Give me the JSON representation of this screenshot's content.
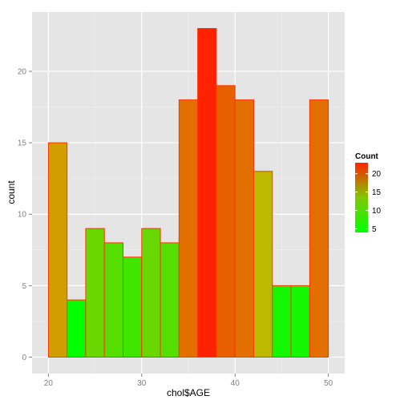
{
  "chart_data": {
    "type": "bar",
    "xlabel": "chol$AGE",
    "ylabel": "count",
    "bins": [
      {
        "start": 20,
        "end": 22,
        "count": 15
      },
      {
        "start": 22,
        "end": 24,
        "count": 4
      },
      {
        "start": 24,
        "end": 26,
        "count": 9
      },
      {
        "start": 26,
        "end": 28,
        "count": 8
      },
      {
        "start": 28,
        "end": 30,
        "count": 7
      },
      {
        "start": 30,
        "end": 32,
        "count": 9
      },
      {
        "start": 32,
        "end": 34,
        "count": 8
      },
      {
        "start": 34,
        "end": 36,
        "count": 18
      },
      {
        "start": 36,
        "end": 38,
        "count": 23
      },
      {
        "start": 38,
        "end": 40,
        "count": 19
      },
      {
        "start": 40,
        "end": 42,
        "count": 18
      },
      {
        "start": 42,
        "end": 44,
        "count": 13
      },
      {
        "start": 44,
        "end": 46,
        "count": 5
      },
      {
        "start": 46,
        "end": 48,
        "count": 5
      },
      {
        "start": 48,
        "end": 50,
        "count": 18
      }
    ],
    "xlim": [
      18.25,
      51.75
    ],
    "ylim": [
      -1.15,
      24.15
    ],
    "x_ticks": [
      20,
      30,
      40,
      50
    ],
    "y_ticks": [
      0,
      5,
      10,
      15,
      20
    ],
    "grid": true,
    "bar_outline_color": "#ff3300",
    "panel_color": "#e5e5e5",
    "grid_color": "#ffffff",
    "legend": {
      "title": "Count",
      "placement": "right",
      "breaks": [
        5,
        10,
        15,
        20
      ],
      "range": [
        4,
        23
      ],
      "low_color": "#00ff00",
      "high_color": "#ff2200"
    }
  }
}
